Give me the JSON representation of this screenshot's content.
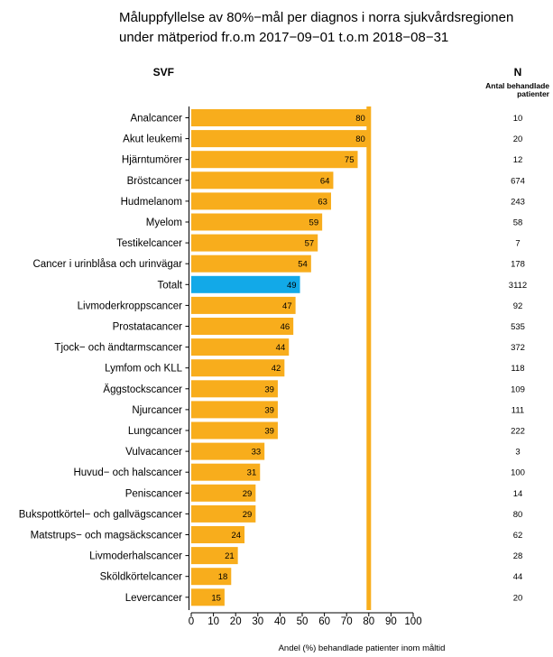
{
  "title_lines": [
    "Måluppfyllelse av 80%−mål per diagnos i norra sjukvårdsregionen",
    "under mätperiod fr.o.m 2017−09−01 t.o.m 2018−08−31"
  ],
  "colors": {
    "bar": "#f8ad1c",
    "highlight": "#12a9e8",
    "target": "#f8ad1c",
    "axis": "#000000"
  },
  "chart_data": {
    "type": "bar",
    "orientation": "horizontal",
    "title": "Måluppfyllelse av 80%−mål per diagnos i norra sjukvårdsregionen under mätperiod fr.o.m 2017−09−01 t.o.m 2018−08−31",
    "category_header": "SVF",
    "n_header": "N",
    "n_subheader_lines": [
      "Antal behandlade",
      "patienter"
    ],
    "xlabel": "Andel (%) behandlade patienter inom måltid",
    "xlim": [
      0,
      100
    ],
    "xticks": [
      0,
      10,
      20,
      30,
      40,
      50,
      60,
      70,
      80,
      90,
      100
    ],
    "target_value": 80,
    "highlight_category": "Totalt",
    "categories": [
      "Analcancer",
      "Akut leukemi",
      "Hjärntumörer",
      "Bröstcancer",
      "Hudmelanom",
      "Myelom",
      "Testikelcancer",
      "Cancer i urinblåsa och urinvägar",
      "Totalt",
      "Livmoderkroppscancer",
      "Prostatacancer",
      "Tjock− och ändtarmscancer",
      "Lymfom och KLL",
      "Äggstockscancer",
      "Njurcancer",
      "Lungcancer",
      "Vulvacancer",
      "Huvud− och halscancer",
      "Peniscancer",
      "Bukspottkörtel− och gallvägscancer",
      "Matstrups− och magsäckscancer",
      "Livmoderhalscancer",
      "Sköldkörtelcancer",
      "Levercancer"
    ],
    "values": [
      80,
      80,
      75,
      64,
      63,
      59,
      57,
      54,
      49,
      47,
      46,
      44,
      42,
      39,
      39,
      39,
      33,
      31,
      29,
      29,
      24,
      21,
      18,
      15
    ],
    "n_values": [
      10,
      20,
      12,
      674,
      243,
      58,
      7,
      178,
      3112,
      92,
      535,
      372,
      118,
      109,
      111,
      222,
      3,
      100,
      14,
      80,
      62,
      28,
      44,
      20
    ]
  }
}
